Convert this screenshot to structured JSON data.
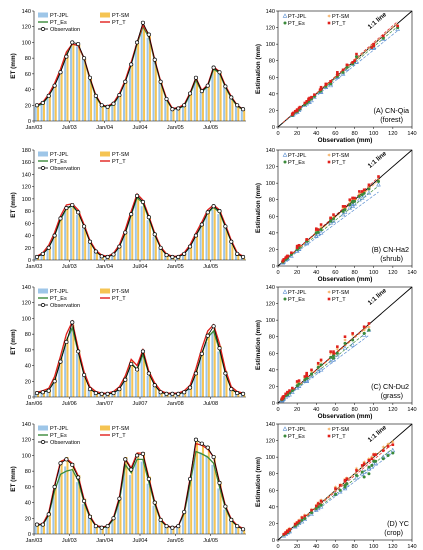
{
  "colors": {
    "PT-JPL": "#9ec6e8",
    "PT-SM": "#f5c453",
    "PT_Es": "#3a8a3a",
    "PT_T": "#e0201c",
    "Observation": "#000000",
    "PT-SM_scatter": "#f39c3c",
    "PT_T_scatter": "#e0201c",
    "PT-JPL_scatter": "#5b8fd1"
  },
  "chart_data": [
    {
      "type": "bar",
      "panel": "A",
      "series_names": [
        "PT-JPL",
        "PT-SM",
        "PT_Es",
        "PT_T",
        "Observation"
      ],
      "ylabel": "ET (mm)",
      "ylim": [
        0,
        140
      ],
      "yticks": [
        0,
        20,
        40,
        60,
        80,
        100,
        120,
        140
      ],
      "xtick_labels": [
        "Jan/03",
        "Jul/03",
        "Jan/04",
        "Jul/04",
        "Jan/05",
        "Jul/05"
      ],
      "xtick_index": [
        0,
        6,
        12,
        18,
        24,
        30
      ],
      "months": 36,
      "observation": [
        20,
        23,
        32,
        45,
        62,
        82,
        100,
        98,
        80,
        55,
        32,
        20,
        18,
        22,
        33,
        50,
        72,
        100,
        125,
        110,
        78,
        50,
        28,
        15,
        16,
        20,
        35,
        55,
        38,
        45,
        68,
        62,
        44,
        30,
        20,
        15
      ],
      "pt_jpl": [
        18,
        22,
        30,
        42,
        60,
        78,
        95,
        95,
        78,
        52,
        30,
        18,
        17,
        20,
        30,
        48,
        70,
        96,
        118,
        106,
        76,
        48,
        26,
        14,
        15,
        18,
        32,
        50,
        36,
        42,
        64,
        60,
        42,
        28,
        18,
        14
      ],
      "pt_sm": [
        19,
        23,
        33,
        46,
        63,
        84,
        98,
        97,
        80,
        54,
        31,
        19,
        18,
        22,
        33,
        51,
        73,
        99,
        122,
        108,
        77,
        49,
        27,
        15,
        16,
        19,
        34,
        53,
        38,
        44,
        67,
        62,
        44,
        30,
        19,
        15
      ],
      "pt_es": [
        19,
        22,
        32,
        45,
        63,
        85,
        98,
        96,
        79,
        53,
        31,
        19,
        18,
        21,
        33,
        50,
        72,
        98,
        120,
        107,
        76,
        49,
        27,
        15,
        16,
        19,
        34,
        52,
        37,
        44,
        66,
        61,
        43,
        29,
        19,
        14
      ],
      "pt_t": [
        20,
        24,
        34,
        48,
        66,
        88,
        98,
        96,
        80,
        55,
        33,
        20,
        19,
        23,
        35,
        52,
        75,
        100,
        122,
        110,
        78,
        51,
        29,
        16,
        17,
        21,
        36,
        55,
        39,
        46,
        69,
        63,
        45,
        31,
        20,
        15
      ]
    },
    {
      "type": "scatter",
      "panel": "A",
      "series_names": [
        "PT-JPL",
        "PT-SM",
        "PT_Es",
        "PT_T"
      ],
      "xlabel": "Observation (mm)",
      "ylabel": "Estimation (mm)",
      "xlim": [
        0,
        140
      ],
      "ylim": [
        0,
        140
      ],
      "ticks": [
        0,
        20,
        40,
        60,
        80,
        100,
        120,
        140
      ],
      "one_one_label": "1:1 line",
      "site_label": "(A) CN-Qia",
      "site_sublabel": "(forest)",
      "slopes": {
        "PT-JPL": 0.93,
        "PT-SM": 1.0,
        "PT_Es": 0.97,
        "PT_T": 1.02
      }
    },
    {
      "type": "bar",
      "panel": "B",
      "series_names": [
        "PT-JPL",
        "PT-SM",
        "PT_Es",
        "PT_T",
        "Observation"
      ],
      "ylabel": "ET (mm)",
      "ylim": [
        0,
        180
      ],
      "yticks": [
        0,
        20,
        40,
        60,
        80,
        100,
        120,
        140,
        160,
        180
      ],
      "xtick_labels": [
        "Jan/03",
        "Jul/03",
        "Jan/04",
        "Jul/04",
        "Jan/05",
        "Jul/05"
      ],
      "xtick_index": [
        0,
        6,
        12,
        18,
        24,
        30
      ],
      "months": 36,
      "observation": [
        5,
        10,
        20,
        40,
        68,
        85,
        90,
        78,
        55,
        30,
        14,
        6,
        5,
        9,
        22,
        45,
        75,
        105,
        95,
        70,
        42,
        20,
        8,
        5,
        5,
        10,
        22,
        40,
        58,
        78,
        88,
        80,
        55,
        30,
        10,
        5
      ],
      "pt_jpl": [
        4,
        9,
        18,
        36,
        62,
        80,
        85,
        74,
        52,
        28,
        12,
        5,
        4,
        8,
        20,
        40,
        70,
        98,
        88,
        65,
        38,
        18,
        7,
        4,
        4,
        9,
        20,
        36,
        54,
        72,
        82,
        75,
        52,
        27,
        9,
        4
      ],
      "pt_sm": [
        5,
        11,
        22,
        42,
        70,
        87,
        90,
        80,
        57,
        31,
        15,
        7,
        5,
        10,
        24,
        47,
        78,
        104,
        95,
        70,
        43,
        21,
        9,
        5,
        5,
        11,
        23,
        42,
        60,
        80,
        88,
        80,
        56,
        31,
        11,
        5
      ],
      "pt_es": [
        5,
        10,
        20,
        40,
        66,
        84,
        88,
        78,
        55,
        30,
        14,
        6,
        5,
        9,
        22,
        44,
        74,
        102,
        93,
        68,
        41,
        20,
        8,
        5,
        5,
        10,
        22,
        40,
        57,
        77,
        86,
        78,
        54,
        30,
        10,
        5
      ],
      "pt_t": [
        6,
        12,
        24,
        45,
        72,
        90,
        92,
        82,
        58,
        32,
        16,
        8,
        6,
        11,
        25,
        50,
        80,
        108,
        98,
        72,
        44,
        22,
        10,
        6,
        6,
        12,
        25,
        44,
        62,
        82,
        90,
        82,
        58,
        32,
        12,
        6
      ]
    },
    {
      "type": "scatter",
      "panel": "B",
      "series_names": [
        "PT-JPL",
        "PT-SM",
        "PT_Es",
        "PT_T"
      ],
      "xlabel": "Observation (mm)",
      "ylabel": "Estimation (mm)",
      "xlim": [
        0,
        140
      ],
      "ylim": [
        0,
        140
      ],
      "ticks": [
        0,
        20,
        40,
        60,
        80,
        100,
        120,
        140
      ],
      "one_one_label": "1:1 line",
      "site_label": "(B) CN-Ha2",
      "site_sublabel": "(shrub)",
      "slopes": {
        "PT-JPL": 0.85,
        "PT-SM": 0.98,
        "PT_Es": 0.92,
        "PT_T": 1.02
      }
    },
    {
      "type": "bar",
      "panel": "C",
      "series_names": [
        "PT-JPL",
        "PT-SM",
        "PT_Es",
        "PT_T",
        "Observation"
      ],
      "ylabel": "ET (mm)",
      "ylim": [
        0,
        140
      ],
      "yticks": [
        0,
        20,
        40,
        60,
        80,
        100,
        120,
        140
      ],
      "xtick_labels": [
        "Jan/06",
        "Jul/06",
        "Jan/07",
        "Jul/07",
        "Jan/08",
        "Jul/08"
      ],
      "xtick_index": [
        0,
        6,
        12,
        18,
        24,
        30
      ],
      "months": 36,
      "observation": [
        5,
        6,
        8,
        20,
        45,
        70,
        95,
        58,
        28,
        10,
        5,
        4,
        4,
        5,
        10,
        22,
        42,
        35,
        58,
        30,
        15,
        6,
        4,
        4,
        4,
        6,
        12,
        30,
        55,
        78,
        90,
        62,
        30,
        10,
        5,
        4
      ],
      "pt_jpl": [
        4,
        5,
        7,
        18,
        40,
        66,
        88,
        55,
        26,
        9,
        4,
        3,
        3,
        4,
        9,
        20,
        38,
        32,
        52,
        27,
        13,
        5,
        3,
        3,
        3,
        5,
        10,
        26,
        50,
        70,
        82,
        58,
        27,
        9,
        4,
        3
      ],
      "pt_sm": [
        6,
        7,
        10,
        24,
        50,
        76,
        92,
        60,
        30,
        12,
        6,
        5,
        5,
        6,
        12,
        25,
        46,
        38,
        56,
        32,
        17,
        7,
        5,
        5,
        5,
        7,
        14,
        34,
        60,
        82,
        88,
        65,
        33,
        12,
        6,
        5
      ],
      "pt_es": [
        5,
        6,
        9,
        21,
        46,
        72,
        88,
        57,
        28,
        11,
        5,
        4,
        4,
        5,
        11,
        23,
        43,
        35,
        54,
        30,
        15,
        6,
        4,
        4,
        4,
        6,
        12,
        30,
        55,
        76,
        84,
        60,
        30,
        10,
        5,
        4
      ],
      "pt_t": [
        6,
        8,
        11,
        26,
        52,
        80,
        96,
        62,
        32,
        13,
        7,
        5,
        5,
        7,
        13,
        27,
        48,
        40,
        60,
        33,
        18,
        8,
        5,
        5,
        5,
        8,
        15,
        36,
        62,
        84,
        92,
        68,
        35,
        13,
        7,
        5
      ]
    },
    {
      "type": "scatter",
      "panel": "C",
      "series_names": [
        "PT-JPL",
        "PT-SM",
        "PT_Es",
        "PT_T"
      ],
      "xlabel": "Observation (mm)",
      "ylabel": "Estimation (mm)",
      "xlim": [
        0,
        140
      ],
      "ylim": [
        0,
        140
      ],
      "ticks": [
        0,
        20,
        40,
        60,
        80,
        100,
        120,
        140
      ],
      "one_one_label": "1:1 line",
      "site_label": "(C) CN-Du2",
      "site_sublabel": "(grass)",
      "slopes": {
        "PT-JPL": 0.86,
        "PT-SM": 0.98,
        "PT_Es": 0.92,
        "PT_T": 1.0
      }
    },
    {
      "type": "bar",
      "panel": "D",
      "series_names": [
        "PT-JPL",
        "PT-SM",
        "PT_Es",
        "PT_T",
        "Observation"
      ],
      "ylabel": "ET (mm)",
      "ylim": [
        0,
        140
      ],
      "yticks": [
        0,
        20,
        40,
        60,
        80,
        100,
        120,
        140
      ],
      "xtick_labels": [
        "Jan/03",
        "Jul/03",
        "Jan/04",
        "Jul/04",
        "Jan/05",
        "Jul/05"
      ],
      "xtick_index": [
        0,
        6,
        12,
        18,
        24,
        30
      ],
      "months": 36,
      "observation": [
        12,
        12,
        25,
        60,
        90,
        95,
        88,
        72,
        42,
        22,
        10,
        8,
        10,
        20,
        45,
        95,
        82,
        100,
        102,
        70,
        40,
        18,
        10,
        8,
        10,
        28,
        70,
        120,
        115,
        110,
        98,
        65,
        35,
        18,
        10,
        6
      ],
      "pt_jpl": [
        10,
        11,
        22,
        55,
        82,
        86,
        80,
        66,
        38,
        20,
        9,
        7,
        9,
        18,
        40,
        86,
        75,
        92,
        92,
        64,
        36,
        16,
        9,
        7,
        9,
        25,
        62,
        108,
        104,
        100,
        88,
        58,
        31,
        16,
        9,
        5
      ],
      "pt_sm": [
        13,
        14,
        28,
        64,
        94,
        98,
        90,
        75,
        45,
        24,
        12,
        9,
        11,
        22,
        48,
        98,
        86,
        104,
        104,
        73,
        42,
        20,
        11,
        9,
        11,
        30,
        73,
        118,
        116,
        112,
        100,
        67,
        37,
        20,
        11,
        7
      ],
      "pt_es": [
        11,
        12,
        24,
        55,
        76,
        80,
        82,
        68,
        40,
        21,
        10,
        8,
        9,
        19,
        42,
        88,
        78,
        95,
        95,
        66,
        38,
        17,
        10,
        8,
        10,
        26,
        64,
        105,
        102,
        98,
        90,
        60,
        33,
        17,
        10,
        6
      ],
      "pt_t": [
        12,
        13,
        27,
        62,
        92,
        96,
        90,
        74,
        44,
        23,
        11,
        9,
        10,
        21,
        47,
        96,
        84,
        103,
        103,
        72,
        41,
        19,
        11,
        8,
        10,
        29,
        71,
        115,
        113,
        108,
        98,
        66,
        36,
        19,
        11,
        7
      ]
    },
    {
      "type": "scatter",
      "panel": "D",
      "series_names": [
        "PT-JPL",
        "PT-SM",
        "PT_Es",
        "PT_T"
      ],
      "xlabel": "Observation (mm)",
      "ylabel": "Estimation (mm)",
      "xlim": [
        0,
        140
      ],
      "ylim": [
        0,
        140
      ],
      "ticks": [
        0,
        20,
        40,
        60,
        80,
        100,
        120,
        140
      ],
      "one_one_label": "1:1 line",
      "site_label": "(D) YC",
      "site_sublabel": "(crop)",
      "slopes": {
        "PT-JPL": 0.88,
        "PT-SM": 1.0,
        "PT_Es": 0.92,
        "PT_T": 0.97
      }
    }
  ]
}
